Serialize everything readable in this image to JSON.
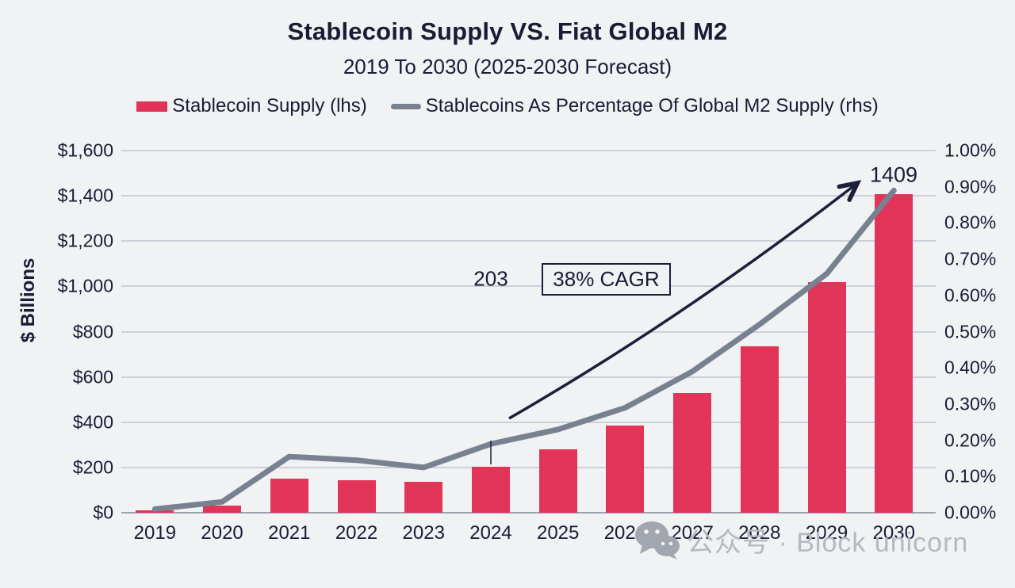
{
  "title": "Stablecoin Supply VS. Fiat Global M2",
  "subtitle": "2019 To 2030 (2025-2030 Forecast)",
  "legend": {
    "bar_series_label": "Stablecoin Supply (lhs)",
    "line_series_label": "Stablecoins As Percentage Of Global M2 Supply (rhs)"
  },
  "colors": {
    "background": "#f1f2f4",
    "bar": "#e23458",
    "line": "#78818f",
    "text": "#191c33",
    "gridline": "#cdd0d8",
    "watermark": "#b5b8be"
  },
  "chart_data": {
    "type": "bar",
    "combo": "bar+line dual axis",
    "categories": [
      "2019",
      "2020",
      "2021",
      "2022",
      "2023",
      "2024",
      "2025",
      "2026",
      "2027",
      "2028",
      "2029",
      "2030"
    ],
    "series": [
      {
        "name": "Stablecoin Supply (lhs)",
        "type": "bar",
        "axis": "left",
        "unit": "$ Billions",
        "values": [
          5,
          30,
          150,
          145,
          135,
          203,
          280,
          385,
          530,
          735,
          1020,
          1409
        ]
      },
      {
        "name": "Stablecoins As Percentage Of Global M2 Supply (rhs)",
        "type": "line",
        "axis": "right",
        "unit": "percent",
        "values": [
          0.01,
          0.03,
          0.155,
          0.145,
          0.125,
          0.19,
          0.23,
          0.29,
          0.39,
          0.52,
          0.66,
          0.89
        ]
      }
    ],
    "left_axis": {
      "title": "$ Billions",
      "min": 0,
      "max": 1600,
      "step": 200,
      "ticks": [
        "$0",
        "$200",
        "$400",
        "$600",
        "$800",
        "$1,000",
        "$1,200",
        "$1,400",
        "$1,600"
      ]
    },
    "right_axis": {
      "min": 0,
      "max": 1.0,
      "step": 0.1,
      "ticks": [
        "0.00%",
        "0.10%",
        "0.20%",
        "0.30%",
        "0.40%",
        "0.50%",
        "0.60%",
        "0.70%",
        "0.80%",
        "0.90%",
        "1.00%"
      ]
    },
    "grid": true,
    "legend_position": "top",
    "annotations": {
      "bar_2024_label": "203",
      "bar_2030_label": "1409",
      "cagr_label": "38% CAGR"
    }
  },
  "watermark": {
    "icon": "wechat-icon",
    "text": "公众号 · Block unicorn"
  }
}
